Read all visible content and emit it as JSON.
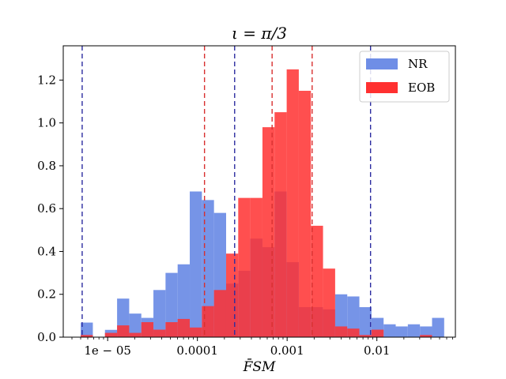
{
  "chart_data": {
    "type": "bar",
    "subtype": "overlaid-histogram",
    "title": "ι = π/3",
    "xlabel": "F̄SM",
    "ylabel": "",
    "xscale": "log10",
    "xlim": [
      3.2e-06,
      0.075
    ],
    "ylim": [
      0,
      1.36
    ],
    "xticks": [
      {
        "value": 1e-05,
        "label": "1e − 05"
      },
      {
        "value": 0.0001,
        "label": "0.0001"
      },
      {
        "value": 0.001,
        "label": "0.001"
      },
      {
        "value": 0.01,
        "label": "0.01"
      }
    ],
    "yticks": [
      {
        "value": 0,
        "label": "0.0"
      },
      {
        "value": 0.2,
        "label": "0.2"
      },
      {
        "value": 0.4,
        "label": "0.4"
      },
      {
        "value": 0.6,
        "label": "0.6"
      },
      {
        "value": 0.8,
        "label": "0.8"
      },
      {
        "value": 1.0,
        "label": "1.0"
      },
      {
        "value": 1.2,
        "label": "1.2"
      }
    ],
    "legend_position": "top-right",
    "series": [
      {
        "name": "NR",
        "color": "#6f8ee6",
        "bin_start_log10": -5.3,
        "bin_width_log10": 0.135,
        "values": [
          0.068,
          0.0,
          0.034,
          0.18,
          0.11,
          0.09,
          0.22,
          0.3,
          0.34,
          0.68,
          0.64,
          0.58,
          0.25,
          0.31,
          0.46,
          0.42,
          0.68,
          0.35,
          0.14,
          0.14,
          0.13,
          0.2,
          0.19,
          0.14,
          0.09,
          0.06,
          0.05,
          0.06,
          0.05,
          0.09
        ],
        "dashed_lines": [
          5.2e-06,
          0.00026,
          0.0085
        ]
      },
      {
        "name": "EOB",
        "color": "#ff3030",
        "bin_start_log10": -5.3,
        "bin_width_log10": 0.135,
        "values": [
          0.01,
          0.0,
          0.02,
          0.055,
          0.02,
          0.07,
          0.035,
          0.07,
          0.085,
          0.045,
          0.145,
          0.22,
          0.39,
          0.65,
          0.65,
          0.98,
          1.05,
          1.25,
          1.15,
          0.52,
          0.32,
          0.05,
          0.04,
          0.01,
          0.035,
          0.0,
          0.0,
          0.0,
          0.01,
          0.0
        ],
        "dashed_lines": [
          0.00012,
          0.00068,
          0.0019
        ]
      }
    ]
  }
}
